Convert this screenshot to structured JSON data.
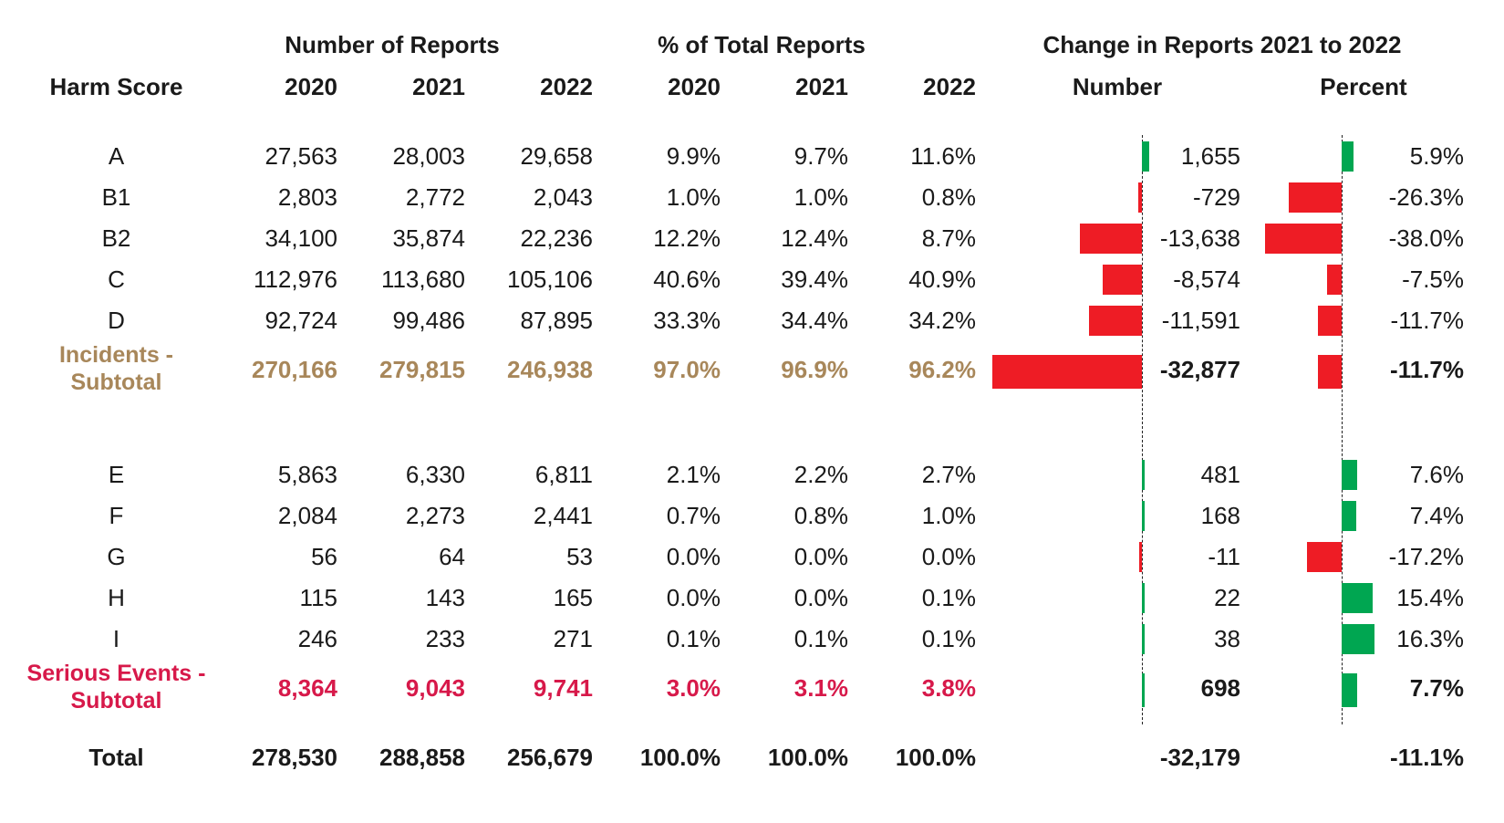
{
  "header": {
    "group_number": "Number of Reports",
    "group_percent": "% of Total Reports",
    "group_change": "Change in Reports 2021 to 2022",
    "col_harm": "Harm Score",
    "years": [
      "2020",
      "2021",
      "2022"
    ],
    "col_change_number": "Number",
    "col_change_percent": "Percent"
  },
  "colors": {
    "negative": "#ee1c25",
    "positive": "#00a651",
    "incidents_subtotal": "#a8875a",
    "serious_subtotal": "#d7194a",
    "text": "#1a1a1a"
  },
  "chart_data": {
    "type": "table",
    "rows": [
      {
        "kind": "data",
        "label": "A",
        "counts": [
          "27,563",
          "28,003",
          "29,658"
        ],
        "shares": [
          "9.9%",
          "9.7%",
          "11.6%"
        ],
        "change": "1,655",
        "change_pct": "5.9%",
        "change_value": 1655,
        "change_pct_value": 5.9
      },
      {
        "kind": "data",
        "label": "B1",
        "counts": [
          "2,803",
          "2,772",
          "2,043"
        ],
        "shares": [
          "1.0%",
          "1.0%",
          "0.8%"
        ],
        "change": "-729",
        "change_pct": "-26.3%",
        "change_value": -729,
        "change_pct_value": -26.3
      },
      {
        "kind": "data",
        "label": "B2",
        "counts": [
          "34,100",
          "35,874",
          "22,236"
        ],
        "shares": [
          "12.2%",
          "12.4%",
          "8.7%"
        ],
        "change": "-13,638",
        "change_pct": "-38.0%",
        "change_value": -13638,
        "change_pct_value": -38.0
      },
      {
        "kind": "data",
        "label": "C",
        "counts": [
          "112,976",
          "113,680",
          "105,106"
        ],
        "shares": [
          "40.6%",
          "39.4%",
          "40.9%"
        ],
        "change": "-8,574",
        "change_pct": "-7.5%",
        "change_value": -8574,
        "change_pct_value": -7.5
      },
      {
        "kind": "data",
        "label": "D",
        "counts": [
          "92,724",
          "99,486",
          "87,895"
        ],
        "shares": [
          "33.3%",
          "34.4%",
          "34.2%"
        ],
        "change": "-11,591",
        "change_pct": "-11.7%",
        "change_value": -11591,
        "change_pct_value": -11.7
      },
      {
        "kind": "incidents",
        "label_lines": [
          "Incidents -",
          "Subtotal"
        ],
        "counts": [
          "270,166",
          "279,815",
          "246,938"
        ],
        "shares": [
          "97.0%",
          "96.9%",
          "96.2%"
        ],
        "change": "-32,877",
        "change_pct": "-11.7%",
        "change_value": -32877,
        "change_pct_value": -11.7
      },
      {
        "kind": "data",
        "label": "E",
        "counts": [
          "5,863",
          "6,330",
          "6,811"
        ],
        "shares": [
          "2.1%",
          "2.2%",
          "2.7%"
        ],
        "change": "481",
        "change_pct": "7.6%",
        "change_value": 481,
        "change_pct_value": 7.6
      },
      {
        "kind": "data",
        "label": "F",
        "counts": [
          "2,084",
          "2,273",
          "2,441"
        ],
        "shares": [
          "0.7%",
          "0.8%",
          "1.0%"
        ],
        "change": "168",
        "change_pct": "7.4%",
        "change_value": 168,
        "change_pct_value": 7.4
      },
      {
        "kind": "data",
        "label": "G",
        "counts": [
          "56",
          "64",
          "53"
        ],
        "shares": [
          "0.0%",
          "0.0%",
          "0.0%"
        ],
        "change": "-11",
        "change_pct": "-17.2%",
        "change_value": -11,
        "change_pct_value": -17.2
      },
      {
        "kind": "data",
        "label": "H",
        "counts": [
          "115",
          "143",
          "165"
        ],
        "shares": [
          "0.0%",
          "0.0%",
          "0.1%"
        ],
        "change": "22",
        "change_pct": "15.4%",
        "change_value": 22,
        "change_pct_value": 15.4
      },
      {
        "kind": "data",
        "label": "I",
        "counts": [
          "246",
          "233",
          "271"
        ],
        "shares": [
          "0.1%",
          "0.1%",
          "0.1%"
        ],
        "change": "38",
        "change_pct": "16.3%",
        "change_value": 38,
        "change_pct_value": 16.3
      },
      {
        "kind": "serious",
        "label_lines": [
          "Serious Events -",
          "Subtotal"
        ],
        "counts": [
          "8,364",
          "9,043",
          "9,741"
        ],
        "shares": [
          "3.0%",
          "3.1%",
          "3.8%"
        ],
        "change": "698",
        "change_pct": "7.7%",
        "change_value": 698,
        "change_pct_value": 7.7
      },
      {
        "kind": "total",
        "label": "Total",
        "counts": [
          "278,530",
          "288,858",
          "256,679"
        ],
        "shares": [
          "100.0%",
          "100.0%",
          "100.0%"
        ],
        "change": "-32,179",
        "change_pct": "-11.1%"
      }
    ]
  }
}
